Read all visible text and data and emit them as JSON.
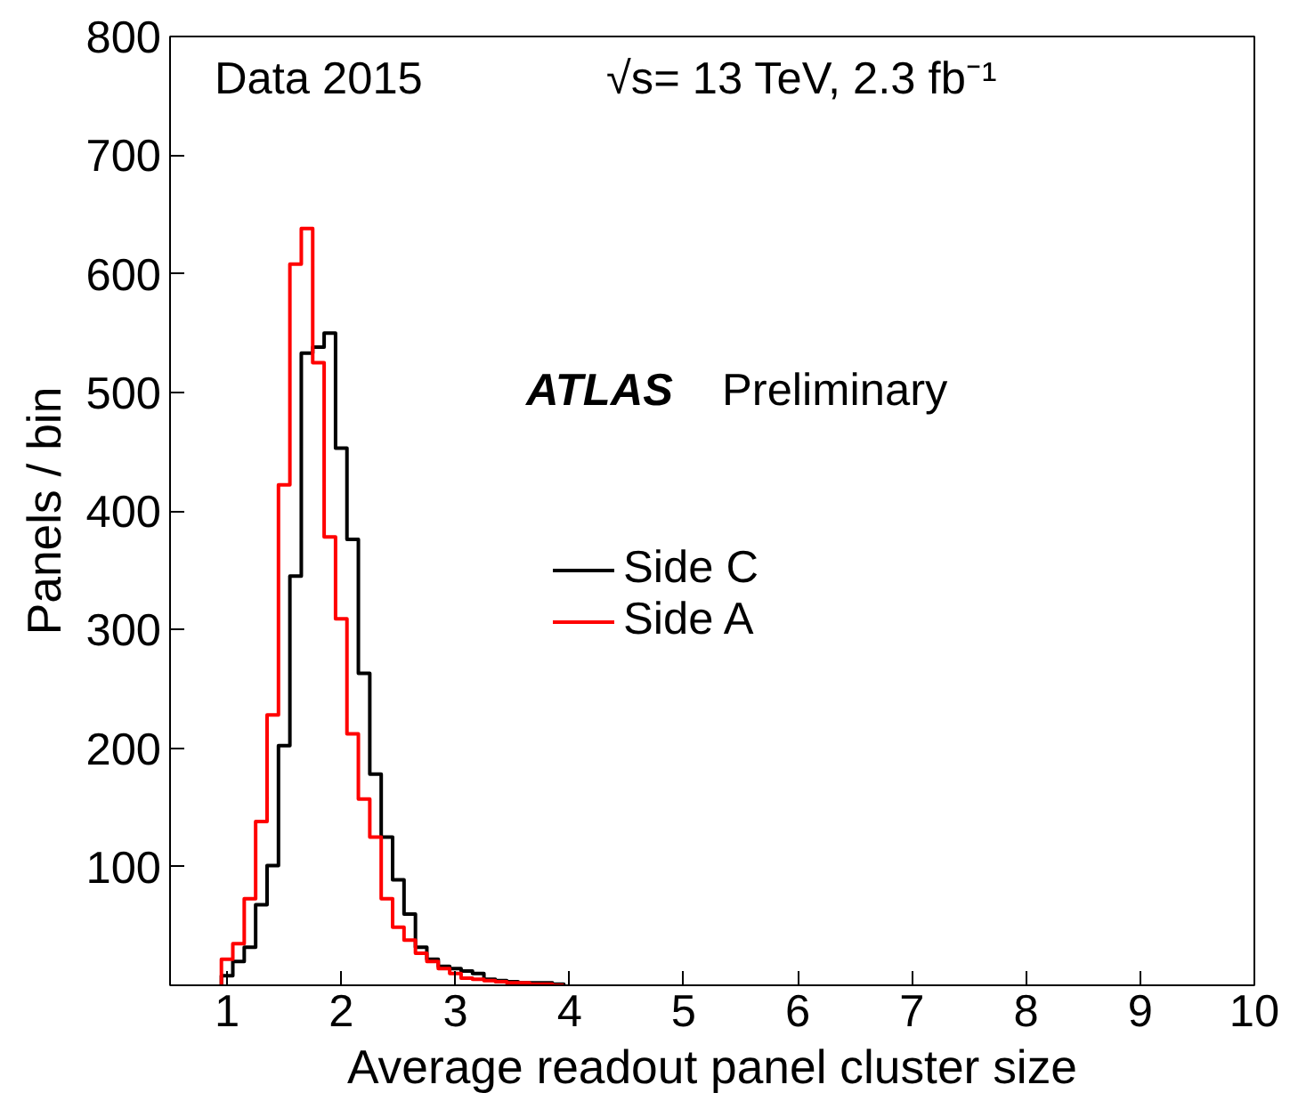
{
  "chart_data": {
    "type": "histogram",
    "xlabel": "Average readout panel cluster size",
    "ylabel": "Panels / bin",
    "annotations": [
      "Data 2015",
      "√s= 13 TeV, 2.3 fb⁻¹",
      "ATLAS",
      "Preliminary"
    ],
    "bins": [
      0.95,
      1.05,
      1.15,
      1.25,
      1.35,
      1.45,
      1.55,
      1.65,
      1.75,
      1.85,
      1.95,
      2.05,
      2.15,
      2.25,
      2.35,
      2.45,
      2.55,
      2.65,
      2.75,
      2.85,
      2.95,
      3.05,
      3.15,
      3.25,
      3.35,
      3.45,
      3.55,
      3.65,
      3.75,
      3.85,
      3.95
    ],
    "series": [
      {
        "name": "Side C",
        "color": "#000000",
        "values": [
          8,
          20,
          32,
          68,
          101,
          202,
          345,
          533,
          538,
          550,
          453,
          376,
          263,
          178,
          125,
          89,
          60,
          32,
          22,
          16,
          14,
          12,
          10,
          5,
          4,
          3,
          2,
          2,
          2,
          1
        ]
      },
      {
        "name": "Side A",
        "color": "#ff0000",
        "values": [
          22,
          35,
          73,
          138,
          228,
          422,
          608,
          638,
          525,
          378,
          309,
          212,
          157,
          125,
          73,
          49,
          38,
          27,
          20,
          14,
          10,
          6,
          5,
          4,
          3,
          2,
          2,
          1,
          1,
          0
        ]
      }
    ],
    "xlim": [
      0.5,
      10
    ],
    "ylim": [
      0,
      800
    ],
    "xticks": [
      1,
      2,
      3,
      4,
      5,
      6,
      7,
      8,
      9,
      10
    ],
    "yticks": [
      100,
      200,
      300,
      400,
      500,
      600,
      700,
      800
    ],
    "legend": "center",
    "grid": false
  }
}
